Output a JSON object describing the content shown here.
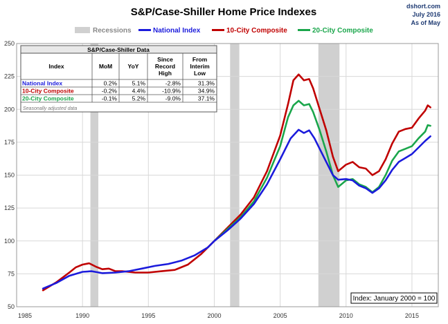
{
  "colors": {
    "national": "#1b1bdc",
    "ten": "#c00000",
    "twenty": "#1aa64b",
    "recession": "#d0d0d0"
  },
  "chart_data": {
    "type": "line",
    "title": "S&P/Case-Shiller Home Price Indexes",
    "source": [
      "dshort.com",
      "July 2016",
      "As of May"
    ],
    "legend": [
      "Recessions",
      "National Index",
      "10-City Composite",
      "20-City Composite"
    ],
    "xlim": [
      1985,
      2017
    ],
    "ylim": [
      50,
      250
    ],
    "x_ticks": [
      1985,
      1990,
      1995,
      2000,
      2005,
      2010,
      2015
    ],
    "y_ticks": [
      50,
      75,
      100,
      125,
      150,
      175,
      200,
      225,
      250
    ],
    "grid": true,
    "recessions": [
      [
        1990.6,
        1991.2
      ],
      [
        2001.2,
        2001.9
      ],
      [
        2007.9,
        2009.5
      ]
    ],
    "series": [
      {
        "name": "National Index",
        "points": [
          [
            1987.0,
            63.8
          ],
          [
            1988.0,
            68.0
          ],
          [
            1989.0,
            73.5
          ],
          [
            1990.0,
            76.5
          ],
          [
            1990.7,
            77.0
          ],
          [
            1991.5,
            75.5
          ],
          [
            1992.5,
            76.0
          ],
          [
            1993.5,
            77.0
          ],
          [
            1994.5,
            79.0
          ],
          [
            1995.5,
            81.0
          ],
          [
            1996.5,
            82.5
          ],
          [
            1997.5,
            85.0
          ],
          [
            1998.5,
            89.0
          ],
          [
            1999.5,
            95.0
          ],
          [
            2000.0,
            100.0
          ],
          [
            2001.0,
            108.0
          ],
          [
            2002.0,
            117.0
          ],
          [
            2003.0,
            128.0
          ],
          [
            2004.0,
            143.0
          ],
          [
            2005.0,
            162.0
          ],
          [
            2005.8,
            178.0
          ],
          [
            2006.4,
            184.5
          ],
          [
            2006.8,
            182.0
          ],
          [
            2007.2,
            184.0
          ],
          [
            2007.6,
            178.0
          ],
          [
            2008.0,
            170.0
          ],
          [
            2008.5,
            160.0
          ],
          [
            2009.0,
            150.0
          ],
          [
            2009.4,
            146.5
          ],
          [
            2010.0,
            147.0
          ],
          [
            2010.5,
            146.0
          ],
          [
            2011.0,
            142.0
          ],
          [
            2011.5,
            140.0
          ],
          [
            2012.0,
            136.5
          ],
          [
            2012.5,
            140.0
          ],
          [
            2013.0,
            146.0
          ],
          [
            2013.5,
            154.0
          ],
          [
            2014.0,
            160.0
          ],
          [
            2014.5,
            163.0
          ],
          [
            2015.0,
            166.0
          ],
          [
            2015.5,
            171.0
          ],
          [
            2016.0,
            176.0
          ],
          [
            2016.4,
            179.5
          ]
        ]
      },
      {
        "name": "10-City Composite",
        "points": [
          [
            1987.0,
            62.5
          ],
          [
            1988.0,
            68.5
          ],
          [
            1989.0,
            76.0
          ],
          [
            1989.5,
            80.0
          ],
          [
            1990.0,
            82.0
          ],
          [
            1990.5,
            83.0
          ],
          [
            1991.0,
            80.5
          ],
          [
            1991.5,
            78.5
          ],
          [
            1992.0,
            79.0
          ],
          [
            1992.5,
            77.0
          ],
          [
            1993.0,
            77.0
          ],
          [
            1994.0,
            76.0
          ],
          [
            1995.0,
            76.0
          ],
          [
            1996.0,
            77.0
          ],
          [
            1997.0,
            78.0
          ],
          [
            1998.0,
            82.0
          ],
          [
            1999.0,
            90.0
          ],
          [
            2000.0,
            100.0
          ],
          [
            2001.0,
            110.0
          ],
          [
            2002.0,
            120.0
          ],
          [
            2003.0,
            133.0
          ],
          [
            2004.0,
            153.0
          ],
          [
            2005.0,
            180.0
          ],
          [
            2005.6,
            204.0
          ],
          [
            2006.0,
            222.0
          ],
          [
            2006.4,
            226.5
          ],
          [
            2006.8,
            222.0
          ],
          [
            2007.2,
            223.0
          ],
          [
            2007.5,
            216.0
          ],
          [
            2008.0,
            200.0
          ],
          [
            2008.5,
            184.0
          ],
          [
            2009.0,
            164.0
          ],
          [
            2009.4,
            153.0
          ],
          [
            2010.0,
            158.0
          ],
          [
            2010.5,
            160.0
          ],
          [
            2011.0,
            156.0
          ],
          [
            2011.5,
            155.0
          ],
          [
            2012.0,
            150.0
          ],
          [
            2012.5,
            153.0
          ],
          [
            2013.0,
            162.0
          ],
          [
            2013.5,
            174.0
          ],
          [
            2014.0,
            183.0
          ],
          [
            2014.5,
            185.0
          ],
          [
            2015.0,
            186.0
          ],
          [
            2015.5,
            193.0
          ],
          [
            2016.0,
            199.0
          ],
          [
            2016.2,
            203.0
          ],
          [
            2016.4,
            201.5
          ]
        ]
      },
      {
        "name": "20-City Composite",
        "points": [
          [
            2000.0,
            100.0
          ],
          [
            2001.0,
            109.0
          ],
          [
            2002.0,
            118.0
          ],
          [
            2003.0,
            130.0
          ],
          [
            2004.0,
            148.0
          ],
          [
            2005.0,
            172.0
          ],
          [
            2005.6,
            194.0
          ],
          [
            2006.0,
            203.0
          ],
          [
            2006.4,
            206.5
          ],
          [
            2006.8,
            203.0
          ],
          [
            2007.2,
            204.0
          ],
          [
            2007.5,
            198.0
          ],
          [
            2008.0,
            184.0
          ],
          [
            2008.5,
            168.0
          ],
          [
            2009.0,
            150.0
          ],
          [
            2009.4,
            141.0
          ],
          [
            2010.0,
            146.0
          ],
          [
            2010.5,
            147.0
          ],
          [
            2011.0,
            143.0
          ],
          [
            2011.5,
            141.0
          ],
          [
            2012.0,
            137.0
          ],
          [
            2012.5,
            141.0
          ],
          [
            2013.0,
            150.0
          ],
          [
            2013.5,
            161.0
          ],
          [
            2014.0,
            168.0
          ],
          [
            2014.5,
            170.0
          ],
          [
            2015.0,
            172.0
          ],
          [
            2015.5,
            178.0
          ],
          [
            2016.0,
            183.0
          ],
          [
            2016.2,
            188.0
          ],
          [
            2016.4,
            187.5
          ]
        ]
      }
    ],
    "index_note": "Index: January 2000 = 100"
  },
  "table": {
    "title": "S&P/Case-Shiller Data",
    "headers": [
      "Index",
      "MoM",
      "YoY",
      "Since Record High",
      "From Interim Low"
    ],
    "header_lines": [
      [
        "Index"
      ],
      [
        "MoM"
      ],
      [
        "YoY"
      ],
      [
        "Since",
        "Record",
        "High"
      ],
      [
        "From",
        "Interim",
        "Low"
      ]
    ],
    "rows": [
      {
        "name": "National Index",
        "values": [
          "0.2%",
          "5.1%",
          "-2.8%",
          "31.3%"
        ],
        "color": "#1b1bdc"
      },
      {
        "name": "10-City Composite",
        "values": [
          "-0.2%",
          "4.4%",
          "-10.9%",
          "34.9%"
        ],
        "color": "#c00000"
      },
      {
        "name": "20-City Composite",
        "values": [
          "-0.1%",
          "5.2%",
          "-9.0%",
          "37.1%"
        ],
        "color": "#1aa64b"
      }
    ],
    "note": "Seasonally adjusted data"
  }
}
